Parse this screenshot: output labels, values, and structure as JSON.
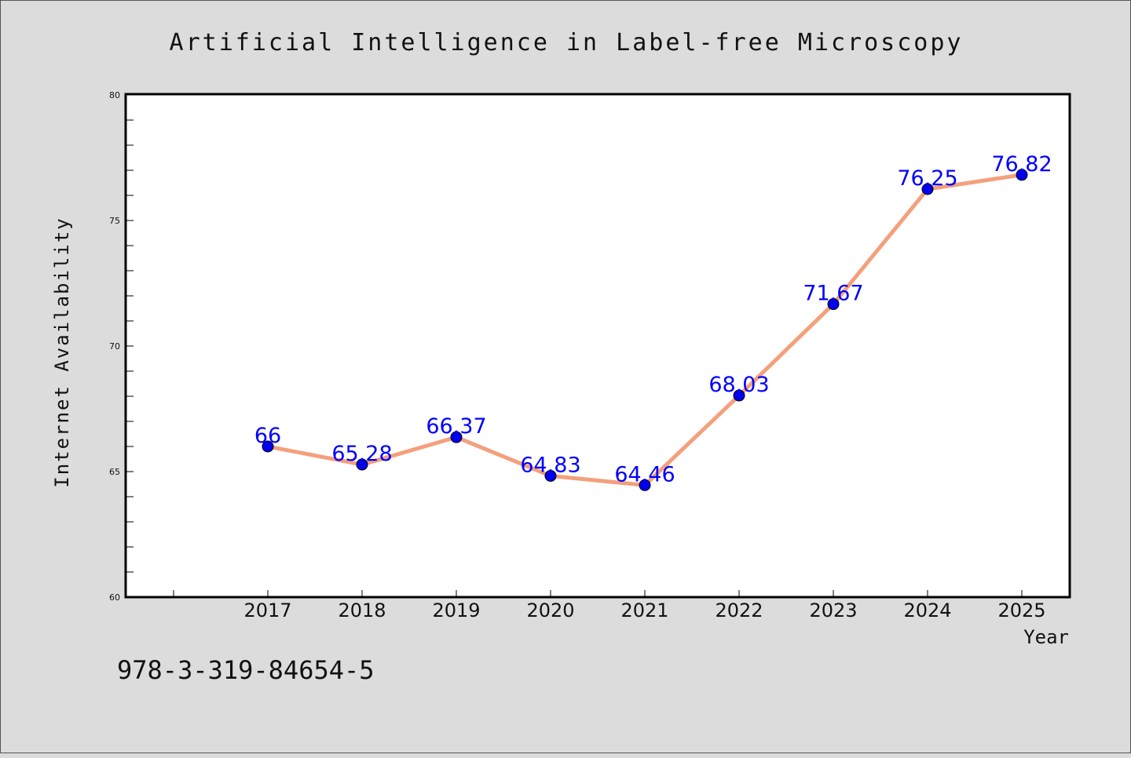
{
  "chart_data": {
    "type": "line",
    "title": "Artificial Intelligence in Label-free Microscopy",
    "xlabel": "Year",
    "ylabel": "Internet Availability",
    "categories": [
      "2017",
      "2018",
      "2019",
      "2020",
      "2021",
      "2022",
      "2023",
      "2024",
      "2025"
    ],
    "series": [
      {
        "values": [
          66,
          65.28,
          66.37,
          64.83,
          64.46,
          68.03,
          71.67,
          76.25,
          76.82
        ],
        "data_labels": [
          "66",
          "65.28",
          "66.37",
          "64.83",
          "64.46",
          "68.03",
          "71.67",
          "76.25",
          "76.82"
        ]
      }
    ],
    "ylim": [
      60,
      80
    ],
    "y_ticks": [
      "60",
      "65",
      "70",
      "75",
      "80"
    ],
    "grid": false,
    "colors": {
      "line": "#f4a07c",
      "marker": "#0000ee",
      "data_label": "#0000ff",
      "background": "#dcdcdc",
      "plot_area": "#ffffff"
    }
  },
  "footer": {
    "isbn": "978-3-319-84654-5"
  }
}
